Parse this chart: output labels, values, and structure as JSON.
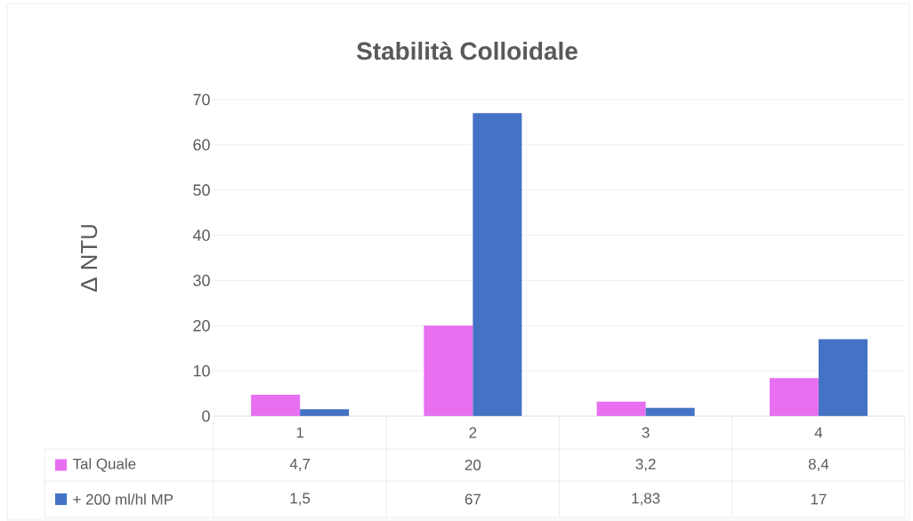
{
  "chart_data": {
    "type": "bar",
    "title": "Stabilità Colloidale",
    "ylabel": "Δ NTU",
    "categories": [
      "1",
      "2",
      "3",
      "4"
    ],
    "series": [
      {
        "name": "Tal Quale",
        "color": "#e76ff0",
        "values": [
          4.7,
          20,
          3.2,
          8.4
        ],
        "value_labels": [
          "4,7",
          "20",
          "3,2",
          "8,4"
        ]
      },
      {
        "name": "+ 200 ml/hl MP",
        "color": "#4472c4",
        "values": [
          1.5,
          67,
          1.83,
          17
        ],
        "value_labels": [
          "1,5",
          "67",
          "1,83",
          "17"
        ]
      }
    ],
    "ylim": [
      0,
      70
    ],
    "yticks": [
      0,
      10,
      20,
      30,
      40,
      50,
      60,
      70
    ],
    "grid": "y",
    "legend": "bottom"
  }
}
